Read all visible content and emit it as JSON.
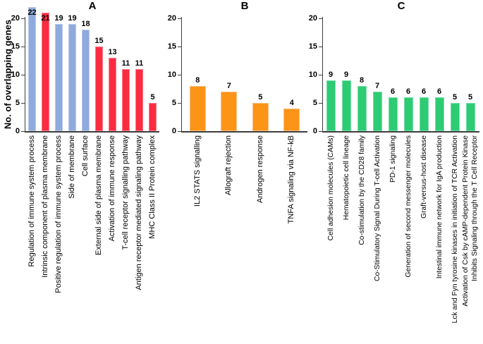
{
  "figure": {
    "y_axis_title": "No. of overlapping genes"
  },
  "palette": {
    "blue": {
      "fill": "#8FAADC",
      "border": "#B9C9EA"
    },
    "red": {
      "fill": "#FB2B41",
      "border": "#FD7A89"
    },
    "orange": {
      "fill": "#FC9418",
      "border": "#FBC083"
    },
    "green": {
      "fill": "#2DCB73",
      "border": "#79DFA8"
    }
  },
  "chart_data": [
    {
      "type": "bar",
      "title": "A",
      "ylabel": "No. of overlapping genes",
      "ylim": [
        0,
        20
      ],
      "yticks": [
        20,
        15,
        10,
        5,
        0
      ],
      "grid": false,
      "legend": "none",
      "categories": [
        "Regulation of immune system process",
        "Intrinsic component of plasma membrane",
        "Positive regulation of immune system process",
        "Side of membrane",
        "Cell surface",
        "External side of plasma membrane",
        "Activation of immune response",
        "T-cell receptor signalling pathway",
        "Antigen receptor mediated signaling pathway",
        "MHC Class II Protein complex"
      ],
      "values": [
        22,
        21,
        19,
        19,
        18,
        15,
        13,
        11,
        11,
        5
      ],
      "bar_colors": [
        "blue",
        "red",
        "blue",
        "blue",
        "blue",
        "red",
        "red",
        "red",
        "red",
        "red"
      ]
    },
    {
      "type": "bar",
      "title": "B",
      "ylabel": "",
      "ylim": [
        0,
        20
      ],
      "yticks": [
        20,
        15,
        10,
        5,
        0
      ],
      "grid": false,
      "legend": "none",
      "categories": [
        "IL2 STATS signalling",
        "Allograft rejection",
        "Androgen response",
        "TNFA signaling via NF-kB"
      ],
      "values": [
        8,
        7,
        5,
        4
      ],
      "bar_colors": [
        "orange",
        "orange",
        "orange",
        "orange"
      ]
    },
    {
      "type": "bar",
      "title": "C",
      "ylabel": "",
      "ylim": [
        0,
        20
      ],
      "yticks": [
        20,
        15,
        10,
        5,
        0
      ],
      "grid": false,
      "legend": "none",
      "categories": [
        "Cell adhesion molecules (CAMs)",
        "Hematopoietic cell lineage",
        "Co-stimulation by the CD28 family",
        "Co-Stimulatory Signal During T-cell Activation",
        "PD-1 signaling",
        "Generation of second messenger molecules",
        "Graft-versus-host disease",
        "Intestinal immune network for IgA production",
        "Lck and Fyn tyrosine kinases in initiation of TCR Activation",
        "Activation of Csk by cAMP-dependent Protein Kinase\nInhibits Signaling through the T Cell Receptor"
      ],
      "values": [
        9,
        9,
        8,
        7,
        6,
        6,
        6,
        6,
        5,
        5
      ],
      "bar_colors": [
        "green",
        "green",
        "green",
        "green",
        "green",
        "green",
        "green",
        "green",
        "green",
        "green"
      ]
    }
  ]
}
